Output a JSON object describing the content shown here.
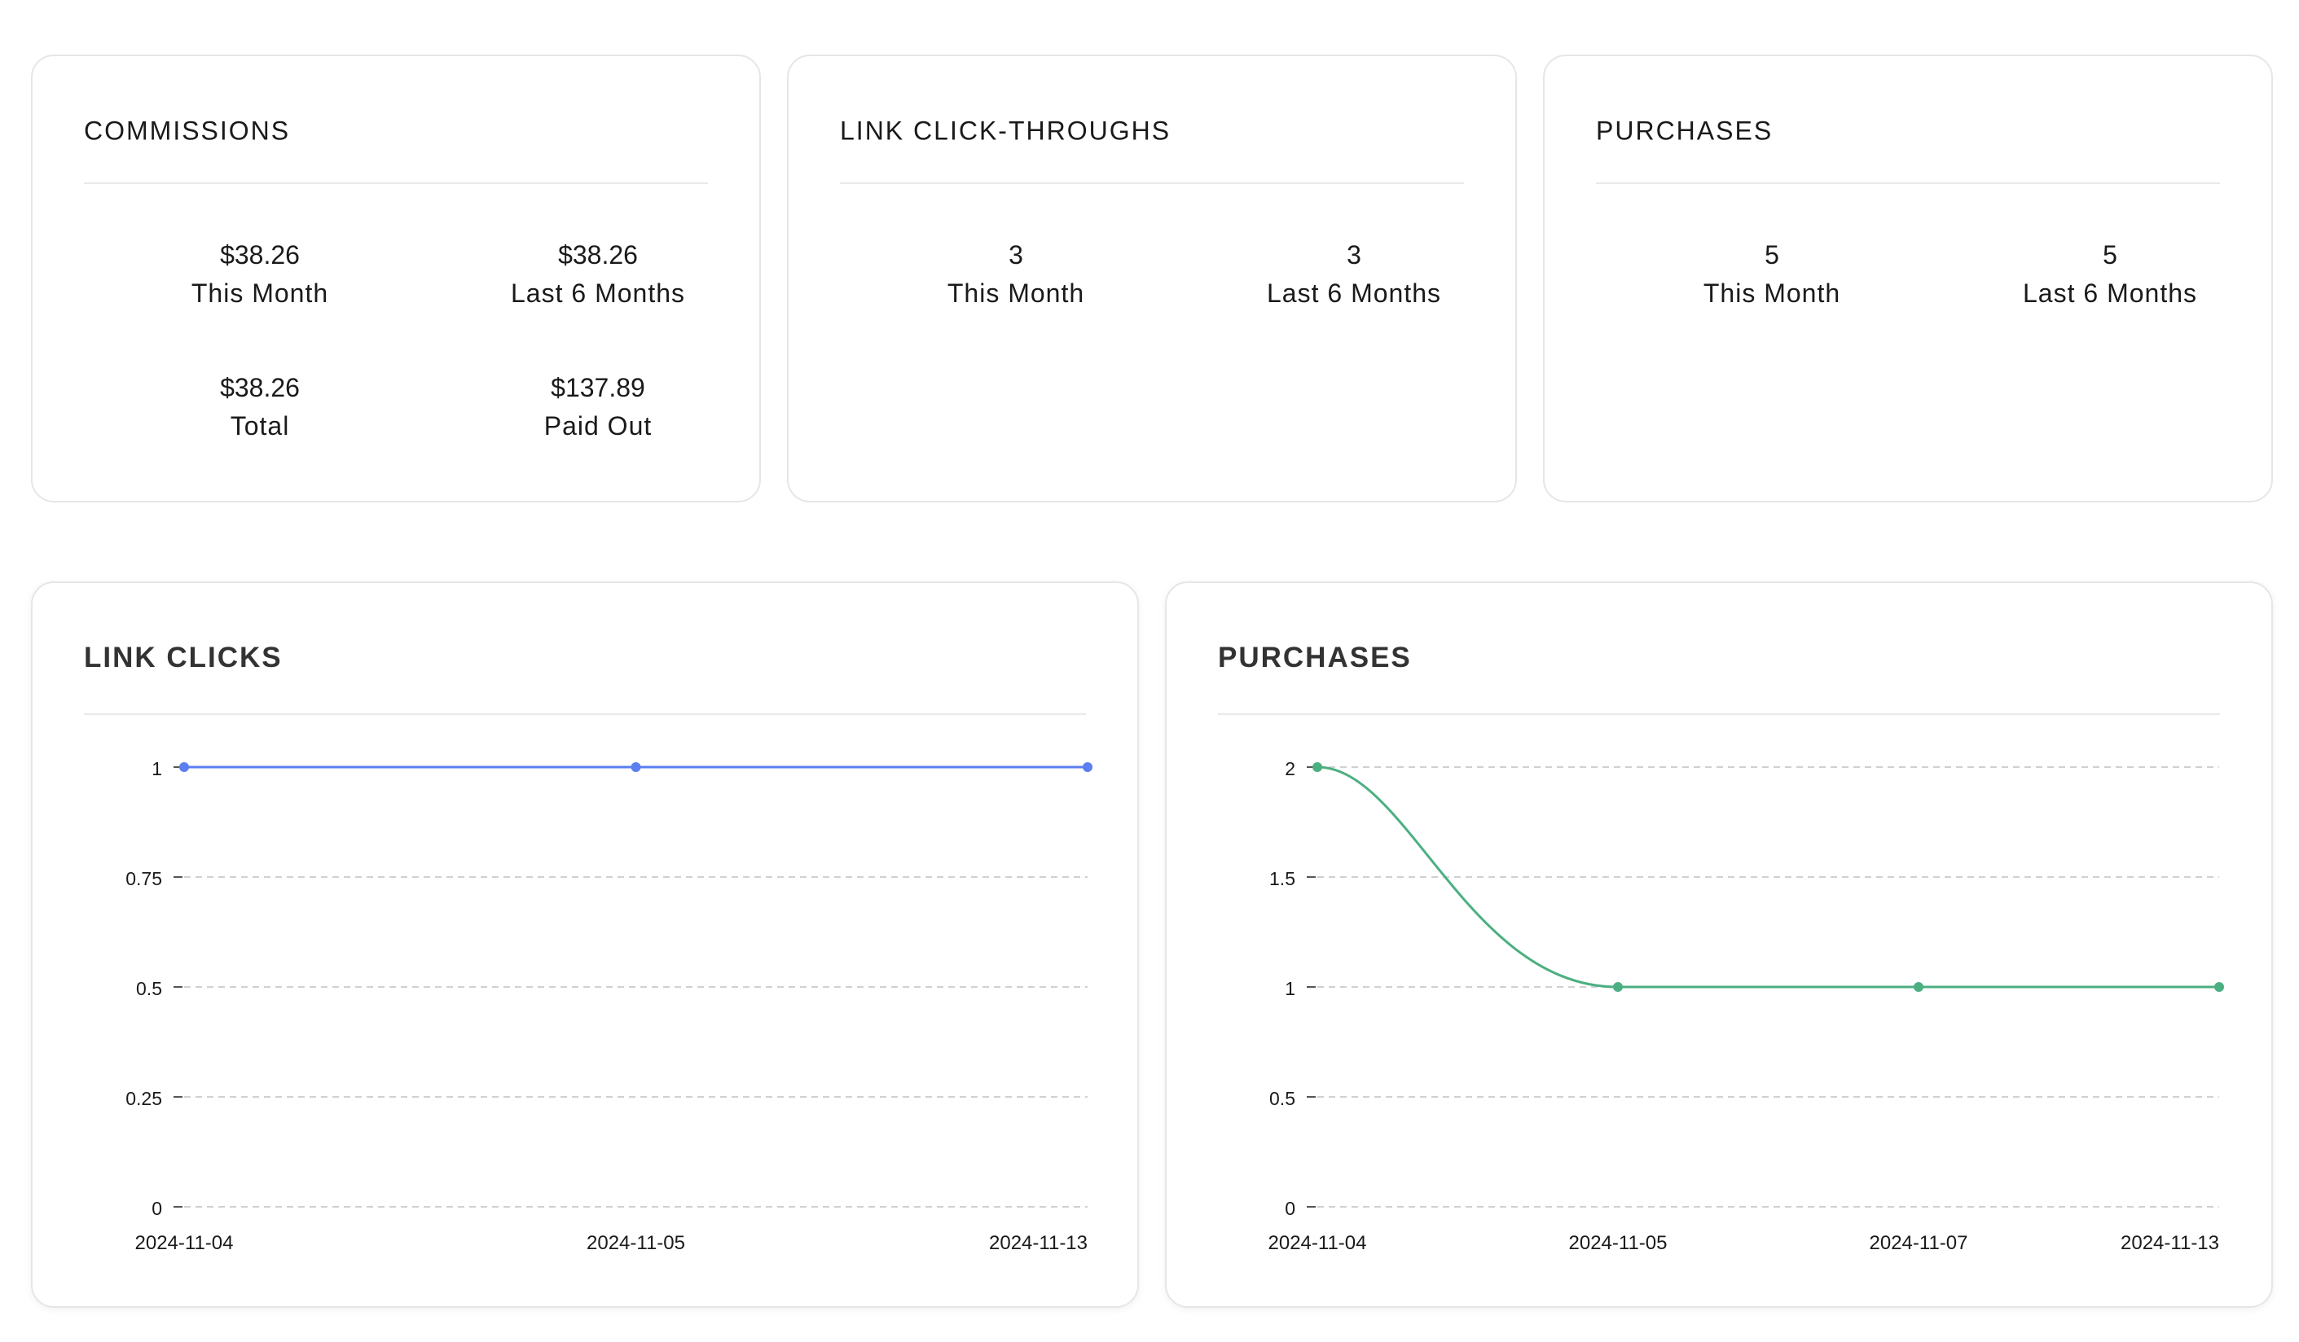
{
  "commissions": {
    "title": "COMMISSIONS",
    "stats": [
      {
        "value": "$38.26",
        "label": "This Month"
      },
      {
        "value": "$38.26",
        "label": "Last 6 Months"
      },
      {
        "value": "$38.26",
        "label": "Total"
      },
      {
        "value": "$137.89",
        "label": "Paid Out"
      }
    ]
  },
  "click_throughs": {
    "title": "LINK CLICK-THROUGHS",
    "stats": [
      {
        "value": "3",
        "label": "This Month"
      },
      {
        "value": "3",
        "label": "Last 6 Months"
      }
    ]
  },
  "purchases_summary": {
    "title": "PURCHASES",
    "stats": [
      {
        "value": "5",
        "label": "This Month"
      },
      {
        "value": "5",
        "label": "Last 6 Months"
      }
    ]
  },
  "charts": {
    "link_clicks_title": "LINK CLICKS",
    "purchases_title": "PURCHASES"
  },
  "chart_data": [
    {
      "type": "line",
      "title": "LINK CLICKS",
      "x": [
        "2024-11-04",
        "2024-11-05",
        "2024-11-13"
      ],
      "series": [
        {
          "values": [
            1,
            1,
            1
          ],
          "color": "#5b7ff0"
        }
      ],
      "yticks": [
        "0",
        "0.25",
        "0.5",
        "0.75",
        "1"
      ],
      "ylim": [
        0,
        1
      ],
      "grid": true
    },
    {
      "type": "line",
      "title": "PURCHASES",
      "x": [
        "2024-11-04",
        "2024-11-05",
        "2024-11-07",
        "2024-11-13"
      ],
      "series": [
        {
          "values": [
            2,
            1,
            1,
            1
          ],
          "color": "#4caf82"
        }
      ],
      "yticks": [
        "0",
        "0.5",
        "1",
        "1.5",
        "2"
      ],
      "ylim": [
        0,
        2
      ],
      "grid": true
    }
  ]
}
